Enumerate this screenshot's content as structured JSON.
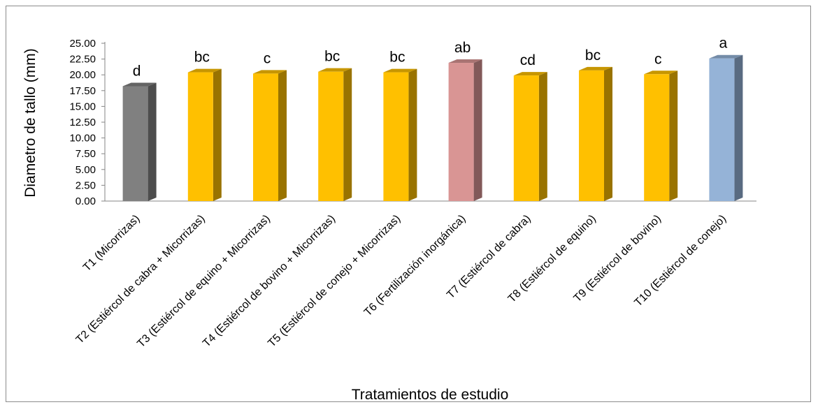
{
  "chart_data": {
    "type": "bar",
    "title": "",
    "xlabel": "Tratamientos de estudio",
    "ylabel": "Diametro de tallo (mm)",
    "ylim": [
      0,
      25
    ],
    "yticks": [
      "0.00",
      "2.50",
      "5.00",
      "7.50",
      "10.00",
      "12.50",
      "15.00",
      "17.50",
      "20.00",
      "22.50",
      "25.00"
    ],
    "grid": false,
    "legend": "none",
    "style": "3d-columns",
    "categories": [
      "T1 (Micorrizas)",
      "T2 (Estiércol de cabra + Micorrizas)",
      "T3 (Estiércol de equino + Micorrizas)",
      "T4 (Estiércol de bovino + Micorrizas)",
      "T5 (Estiércol de conejo + Micorrizas)",
      "T6 (Fertilización inorgánica)",
      "T7 (Estiércol de cabra)",
      "T8 (Estiércol de equino)",
      "T9 (Estiércol de bovino)",
      "T10 (Estiércol de conejo)"
    ],
    "values": [
      18.2,
      20.4,
      20.2,
      20.5,
      20.4,
      21.9,
      19.9,
      20.7,
      20.1,
      22.6
    ],
    "data_labels": [
      "d",
      "bc",
      "c",
      "bc",
      "bc",
      "ab",
      "cd",
      "bc",
      "c",
      "a"
    ],
    "colors": [
      "#808080",
      "#ffc000",
      "#ffc000",
      "#ffc000",
      "#ffc000",
      "#d99594",
      "#ffc000",
      "#ffc000",
      "#ffc000",
      "#95b3d7"
    ]
  }
}
